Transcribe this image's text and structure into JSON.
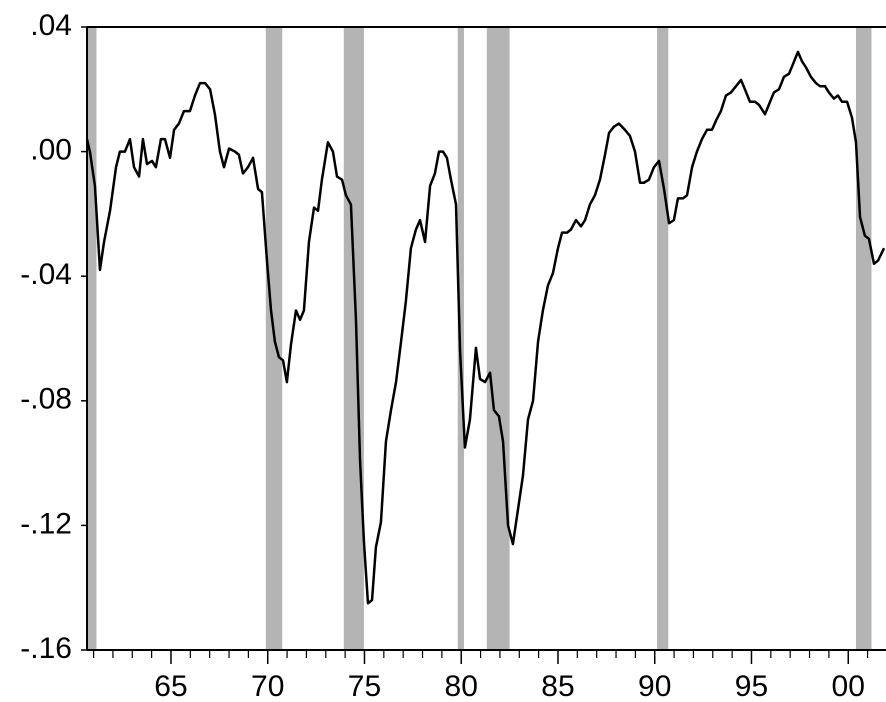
{
  "chart_data": {
    "type": "line",
    "color": "#000000",
    "shade_color": "#b4b4b4",
    "xlim": [
      1960.66,
      2001.9
    ],
    "ylim": [
      -0.16,
      0.04
    ],
    "yticks": [
      {
        "value": 0.04,
        "label": ".04"
      },
      {
        "value": 0,
        "label": ".00"
      },
      {
        "value": -0.04,
        "label": "-.04"
      },
      {
        "value": -0.08,
        "label": "-.08"
      },
      {
        "value": -0.12,
        "label": "-.12"
      },
      {
        "value": -0.16,
        "label": "-.16"
      }
    ],
    "xticks": [
      {
        "value": 1965,
        "label": "65"
      },
      {
        "value": 1970,
        "label": "70"
      },
      {
        "value": 1975,
        "label": "75"
      },
      {
        "value": 1980,
        "label": "80"
      },
      {
        "value": 1985,
        "label": "85"
      },
      {
        "value": 1990,
        "label": "90"
      },
      {
        "value": 1995,
        "label": "95"
      },
      {
        "value": 2000,
        "label": "00"
      }
    ],
    "xminorticks": [
      1961,
      1962,
      1963,
      1964,
      1966,
      1967,
      1968,
      1969,
      1971,
      1972,
      1973,
      1974,
      1976,
      1977,
      1978,
      1979,
      1981,
      1982,
      1983,
      1984,
      1986,
      1987,
      1988,
      1989,
      1991,
      1992,
      1993,
      1994,
      1996,
      1997,
      1998,
      1999,
      2001
    ],
    "shaded_periods": [
      [
        1960.66,
        1961.15
      ],
      [
        1969.9,
        1970.75
      ],
      [
        1973.93,
        1974.97
      ],
      [
        1979.82,
        1980.14
      ],
      [
        1981.32,
        1982.5
      ],
      [
        1990.12,
        1990.7
      ],
      [
        2000.4,
        2001.2
      ]
    ],
    "x": [
      1960.66,
      1960.81,
      1961.07,
      1961.33,
      1961.54,
      1961.85,
      1962.16,
      1962.36,
      1962.62,
      1962.88,
      1963.09,
      1963.35,
      1963.55,
      1963.76,
      1964.02,
      1964.22,
      1964.48,
      1964.69,
      1964.95,
      1965.16,
      1965.41,
      1965.67,
      1965.98,
      1966.24,
      1966.5,
      1966.76,
      1967.02,
      1967.27,
      1967.53,
      1967.74,
      1968.0,
      1968.31,
      1968.51,
      1968.72,
      1968.98,
      1969.24,
      1969.5,
      1969.7,
      1969.96,
      1970.17,
      1970.37,
      1970.58,
      1970.79,
      1970.99,
      1971.2,
      1971.46,
      1971.67,
      1971.87,
      1972.13,
      1972.39,
      1972.6,
      1972.8,
      1973.11,
      1973.37,
      1973.58,
      1973.84,
      1974.04,
      1974.3,
      1974.56,
      1974.77,
      1974.97,
      1975.18,
      1975.39,
      1975.59,
      1975.85,
      1976.11,
      1976.37,
      1976.63,
      1976.89,
      1977.14,
      1977.4,
      1977.66,
      1977.87,
      1978.13,
      1978.39,
      1978.64,
      1978.85,
      1979.06,
      1979.26,
      1979.47,
      1979.73,
      1979.94,
      1980.19,
      1980.45,
      1980.76,
      1980.97,
      1981.23,
      1981.49,
      1981.69,
      1981.95,
      1982.16,
      1982.42,
      1982.67,
      1982.93,
      1983.19,
      1983.45,
      1983.71,
      1983.97,
      1984.22,
      1984.48,
      1984.74,
      1985.0,
      1985.21,
      1985.47,
      1985.67,
      1985.93,
      1986.19,
      1986.4,
      1986.65,
      1986.91,
      1987.17,
      1987.43,
      1987.64,
      1987.89,
      1988.15,
      1988.46,
      1988.72,
      1988.98,
      1989.24,
      1989.44,
      1989.7,
      1989.96,
      1990.22,
      1990.48,
      1990.74,
      1990.99,
      1991.2,
      1991.46,
      1991.67,
      1991.93,
      1992.18,
      1992.44,
      1992.7,
      1992.96,
      1993.17,
      1993.42,
      1993.68,
      1993.94,
      1994.2,
      1994.46,
      1994.66,
      1994.92,
      1995.18,
      1995.39,
      1995.7,
      1995.96,
      1996.16,
      1996.42,
      1996.68,
      1996.94,
      1997.14,
      1997.4,
      1997.61,
      1997.82,
      1998.07,
      1998.33,
      1998.54,
      1998.8,
      1999.0,
      1999.26,
      1999.47,
      1999.68,
      1999.94,
      2000.19,
      2000.4,
      2000.61,
      2000.86,
      2001.07,
      2001.33,
      2001.54,
      2001.85
    ],
    "values": [
      0.004,
      0.0,
      -0.011,
      -0.038,
      -0.029,
      -0.019,
      -0.005,
      0.0,
      0.0,
      0.004,
      -0.005,
      -0.008,
      0.004,
      -0.004,
      -0.003,
      -0.005,
      0.004,
      0.004,
      -0.002,
      0.007,
      0.009,
      0.013,
      0.013,
      0.018,
      0.022,
      0.022,
      0.02,
      0.012,
      0.0,
      -0.005,
      0.001,
      0.0,
      -0.001,
      -0.007,
      -0.005,
      -0.002,
      -0.012,
      -0.013,
      -0.035,
      -0.051,
      -0.061,
      -0.066,
      -0.067,
      -0.074,
      -0.062,
      -0.051,
      -0.054,
      -0.051,
      -0.029,
      -0.018,
      -0.019,
      -0.009,
      0.003,
      0.0,
      -0.008,
      -0.009,
      -0.014,
      -0.017,
      -0.054,
      -0.099,
      -0.125,
      -0.145,
      -0.144,
      -0.127,
      -0.119,
      -0.093,
      -0.083,
      -0.074,
      -0.061,
      -0.048,
      -0.031,
      -0.025,
      -0.022,
      -0.029,
      -0.011,
      -0.007,
      0.0,
      0.0,
      -0.002,
      -0.009,
      -0.017,
      -0.064,
      -0.095,
      -0.086,
      -0.063,
      -0.073,
      -0.074,
      -0.071,
      -0.083,
      -0.085,
      -0.093,
      -0.12,
      -0.126,
      -0.115,
      -0.104,
      -0.086,
      -0.08,
      -0.061,
      -0.051,
      -0.043,
      -0.039,
      -0.031,
      -0.026,
      -0.026,
      -0.025,
      -0.022,
      -0.024,
      -0.022,
      -0.017,
      -0.014,
      -0.009,
      -0.001,
      0.006,
      0.008,
      0.009,
      0.007,
      0.005,
      0.0,
      -0.01,
      -0.01,
      -0.009,
      -0.005,
      -0.003,
      -0.012,
      -0.023,
      -0.022,
      -0.015,
      -0.015,
      -0.014,
      -0.005,
      0.0,
      0.004,
      0.007,
      0.007,
      0.01,
      0.013,
      0.018,
      0.019,
      0.021,
      0.023,
      0.02,
      0.016,
      0.016,
      0.015,
      0.012,
      0.016,
      0.019,
      0.02,
      0.024,
      0.025,
      0.028,
      0.032,
      0.029,
      0.027,
      0.024,
      0.022,
      0.021,
      0.021,
      0.019,
      0.017,
      0.018,
      0.016,
      0.016,
      0.011,
      0.003,
      -0.021,
      -0.027,
      -0.028,
      -0.036,
      -0.035,
      -0.031
    ]
  }
}
